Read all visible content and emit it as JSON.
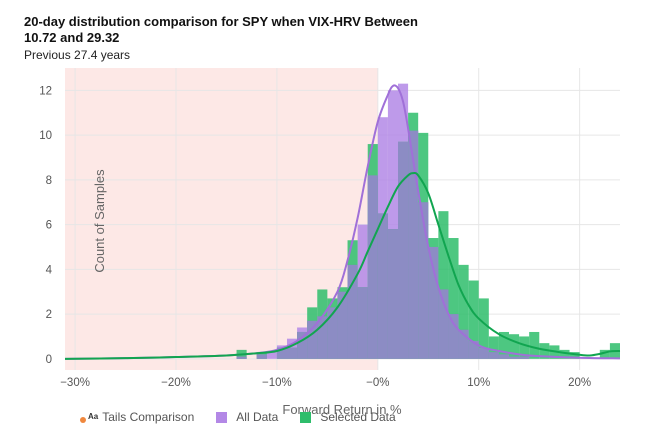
{
  "title": "20-day distribution comparison for SPY when VIX-HRV Between 10.72 and 29.32",
  "subtitle": "Previous 27.4 years",
  "legend": {
    "tails_label": "Tails Comparison",
    "all_label": "All Data",
    "selected_label": "Selected Data"
  },
  "colors": {
    "all": "#b388e6",
    "all_line": "#a070d8",
    "selected": "#2ebd6b",
    "selected_line": "#11a550",
    "overlap": "#8c8cc4",
    "shade": "#fde8e6",
    "tails_icon": "#f0883e"
  },
  "chart_data": {
    "type": "bar",
    "xlabel": "Forward Return in %",
    "ylabel": "Count of Samples",
    "xlim": [
      -31,
      24
    ],
    "ylim": [
      -0.5,
      13
    ],
    "x_ticks": [
      -30,
      -20,
      -10,
      0,
      10,
      20
    ],
    "x_tick_labels": [
      "−30%",
      "−20%",
      "−10%",
      "−0%",
      "10%",
      "20%"
    ],
    "y_ticks": [
      0,
      2,
      4,
      6,
      8,
      10,
      12
    ],
    "grid": true,
    "shaded_region": [
      -31,
      0
    ],
    "bin_width": 1,
    "all_data": {
      "name": "All Data",
      "bins": [
        [
          -13.5,
          0.1
        ],
        [
          -11.5,
          0.2
        ],
        [
          -10.5,
          0.3
        ],
        [
          -9.5,
          0.6
        ],
        [
          -8.5,
          0.9
        ],
        [
          -7.5,
          1.4
        ],
        [
          -6.5,
          1.7
        ],
        [
          -5.5,
          1.9
        ],
        [
          -4.5,
          2.3
        ],
        [
          -3.5,
          3.0
        ],
        [
          -2.5,
          4.2
        ],
        [
          -1.5,
          6.0
        ],
        [
          -0.5,
          8.2
        ],
        [
          0.5,
          10.8
        ],
        [
          1.5,
          12.0
        ],
        [
          2.5,
          12.3
        ],
        [
          3.5,
          10.2
        ],
        [
          4.5,
          7.0
        ],
        [
          5.5,
          5.0
        ],
        [
          6.5,
          3.1
        ],
        [
          7.5,
          2.0
        ],
        [
          8.5,
          1.3
        ],
        [
          9.5,
          0.8
        ],
        [
          10.5,
          0.5
        ],
        [
          11.5,
          0.3
        ],
        [
          12.5,
          0.2
        ],
        [
          13.5,
          0.1
        ],
        [
          14.5,
          0.1
        ]
      ]
    },
    "selected_data": {
      "name": "Selected Data",
      "bins": [
        [
          -13.5,
          0.4
        ],
        [
          -11.5,
          0.3
        ],
        [
          -9.5,
          0.5
        ],
        [
          -8.5,
          0.5
        ],
        [
          -7.5,
          1.2
        ],
        [
          -6.5,
          2.3
        ],
        [
          -5.5,
          3.1
        ],
        [
          -4.5,
          2.7
        ],
        [
          -3.5,
          3.2
        ],
        [
          -2.5,
          5.3
        ],
        [
          -1.5,
          3.2
        ],
        [
          -0.5,
          9.6
        ],
        [
          0.5,
          6.5
        ],
        [
          1.5,
          5.8
        ],
        [
          2.5,
          9.7
        ],
        [
          3.5,
          11.0
        ],
        [
          4.5,
          10.1
        ],
        [
          5.5,
          5.4
        ],
        [
          6.5,
          6.6
        ],
        [
          7.5,
          5.4
        ],
        [
          8.5,
          4.2
        ],
        [
          9.5,
          3.5
        ],
        [
          10.5,
          2.7
        ],
        [
          11.5,
          1.0
        ],
        [
          12.5,
          1.2
        ],
        [
          13.5,
          1.1
        ],
        [
          14.5,
          1.0
        ],
        [
          15.5,
          1.2
        ],
        [
          16.5,
          0.7
        ],
        [
          17.5,
          0.6
        ],
        [
          18.5,
          0.4
        ],
        [
          19.5,
          0.3
        ],
        [
          22.5,
          0.4
        ],
        [
          23.5,
          0.7
        ]
      ]
    },
    "all_data_density": {
      "name": "All Data",
      "x": [
        -31,
        -25,
        -20,
        -15,
        -12,
        -10,
        -8,
        -6,
        -4,
        -3,
        -2,
        -1,
        0,
        1,
        1.5,
        2,
        2.5,
        3,
        4,
        5,
        6,
        7,
        8,
        10,
        12,
        15,
        20,
        24
      ],
      "y": [
        0,
        0.03,
        0.08,
        0.15,
        0.25,
        0.4,
        0.8,
        1.6,
        3.0,
        4.4,
        6.3,
        8.6,
        10.6,
        11.8,
        12.2,
        12.1,
        11.5,
        10.3,
        7.5,
        5.0,
        3.2,
        2.0,
        1.3,
        0.6,
        0.35,
        0.15,
        0.05,
        0.02
      ]
    },
    "selected_data_density": {
      "name": "Selected Data",
      "x": [
        -31,
        -25,
        -20,
        -15,
        -12,
        -10,
        -8,
        -6,
        -4,
        -2,
        -1,
        0,
        1,
        2,
        3,
        3.5,
        4,
        5,
        6,
        7,
        8,
        9,
        10,
        12,
        14,
        16,
        18,
        20,
        21,
        22,
        23,
        24
      ],
      "y": [
        0,
        0.03,
        0.08,
        0.15,
        0.25,
        0.35,
        0.7,
        1.3,
        2.3,
        3.8,
        4.8,
        5.8,
        6.8,
        7.7,
        8.2,
        8.3,
        8.2,
        7.4,
        6.0,
        4.6,
        3.3,
        2.4,
        1.8,
        1.1,
        0.7,
        0.45,
        0.3,
        0.18,
        0.15,
        0.22,
        0.33,
        0.35
      ]
    }
  }
}
